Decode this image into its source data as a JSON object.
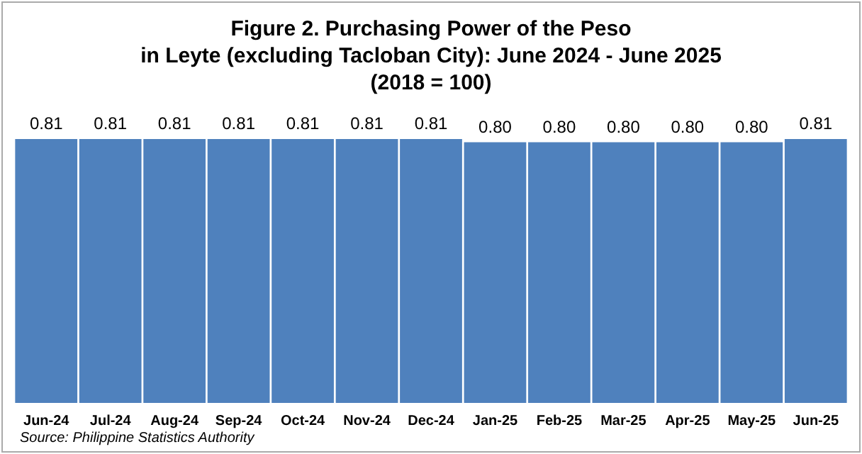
{
  "chart_data": {
    "type": "bar",
    "title": "Figure 2. Purchasing Power of the Peso\nin Leyte (excluding Tacloban City): June 2024 - June 2025\n(2018 = 100)",
    "categories": [
      "Jun-24",
      "Jul-24",
      "Aug-24",
      "Sep-24",
      "Oct-24",
      "Nov-24",
      "Dec-24",
      "Jan-25",
      "Feb-25",
      "Mar-25",
      "Apr-25",
      "May-25",
      "Jun-25"
    ],
    "values": [
      0.81,
      0.81,
      0.81,
      0.81,
      0.81,
      0.81,
      0.81,
      0.8,
      0.8,
      0.8,
      0.8,
      0.8,
      0.81
    ],
    "value_labels": [
      "0.81",
      "0.81",
      "0.81",
      "0.81",
      "0.81",
      "0.81",
      "0.81",
      "0.80",
      "0.80",
      "0.80",
      "0.80",
      "0.80",
      "0.81"
    ],
    "color": "#4f81bd",
    "annotations": [
      "Source: Philippine Statistics Authority"
    ]
  }
}
